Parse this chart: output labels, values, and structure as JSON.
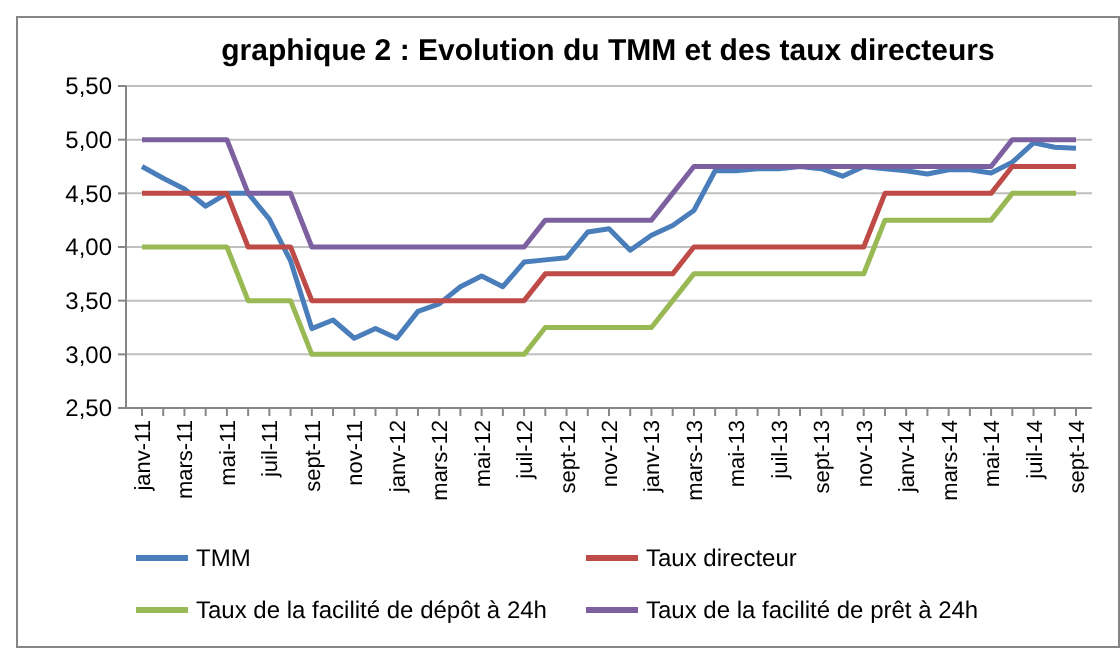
{
  "chart_data": {
    "type": "line",
    "title": "graphique 2 : Evolution du TMM et des taux directeurs",
    "categories": [
      "janv-11",
      null,
      "mars-11",
      null,
      "mai-11",
      null,
      "juil-11",
      null,
      "sept-11",
      null,
      "nov-11",
      null,
      "janv-12",
      null,
      "mars-12",
      null,
      "mai-12",
      null,
      "juil-12",
      null,
      "sept-12",
      null,
      "nov-12",
      null,
      "janv-13",
      null,
      "mars-13",
      null,
      "mai-13",
      null,
      "juil-13",
      null,
      "sept-13",
      null,
      "nov-13",
      null,
      "janv-14",
      null,
      "mars-14",
      null,
      "mai-14",
      null,
      "juil-14",
      null,
      "sept-14"
    ],
    "series": [
      {
        "name": "TMM",
        "color": "#4a7ebb",
        "values": [
          4.75,
          4.64,
          4.54,
          4.38,
          4.5,
          4.5,
          4.26,
          3.87,
          3.24,
          3.32,
          3.15,
          3.24,
          3.15,
          3.4,
          3.47,
          3.63,
          3.73,
          3.63,
          3.86,
          3.88,
          3.9,
          4.14,
          4.17,
          3.97,
          4.11,
          4.2,
          4.34,
          4.71,
          4.71,
          4.73,
          4.73,
          4.75,
          4.73,
          4.66,
          4.75,
          4.73,
          4.71,
          4.68,
          4.72,
          4.72,
          4.69,
          4.79,
          4.97,
          4.93,
          4.92
        ]
      },
      {
        "name": "Taux directeur",
        "color": "#be4b48",
        "values": [
          4.5,
          4.5,
          4.5,
          4.5,
          4.5,
          4,
          4,
          4,
          3.5,
          3.5,
          3.5,
          3.5,
          3.5,
          3.5,
          3.5,
          3.5,
          3.5,
          3.5,
          3.5,
          3.75,
          3.75,
          3.75,
          3.75,
          3.75,
          3.75,
          3.75,
          4,
          4,
          4,
          4,
          4,
          4,
          4,
          4,
          4,
          4.5,
          4.5,
          4.5,
          4.5,
          4.5,
          4.5,
          4.75,
          4.75,
          4.75,
          4.75
        ]
      },
      {
        "name": "Taux de la facilité de dépôt à 24h",
        "color": "#98b954",
        "values": [
          4,
          4,
          4,
          4,
          4,
          3.5,
          3.5,
          3.5,
          3,
          3,
          3,
          3,
          3,
          3,
          3,
          3,
          3,
          3,
          3,
          3.25,
          3.25,
          3.25,
          3.25,
          3.25,
          3.25,
          3.5,
          3.75,
          3.75,
          3.75,
          3.75,
          3.75,
          3.75,
          3.75,
          3.75,
          3.75,
          4.25,
          4.25,
          4.25,
          4.25,
          4.25,
          4.25,
          4.5,
          4.5,
          4.5,
          4.5
        ]
      },
      {
        "name": "Taux de la facilité  de prêt à 24h",
        "color": "#7d60a0",
        "values": [
          5,
          5,
          5,
          5,
          5,
          4.5,
          4.5,
          4.5,
          4,
          4,
          4,
          4,
          4,
          4,
          4,
          4,
          4,
          4,
          4,
          4.25,
          4.25,
          4.25,
          4.25,
          4.25,
          4.25,
          4.5,
          4.75,
          4.75,
          4.75,
          4.75,
          4.75,
          4.75,
          4.75,
          4.75,
          4.75,
          4.75,
          4.75,
          4.75,
          4.75,
          4.75,
          4.75,
          5,
          5,
          5,
          5
        ]
      }
    ],
    "ylim": [
      2.5,
      5.5
    ],
    "yticks": [
      {
        "value": 2.5,
        "label": "2,50"
      },
      {
        "value": 3,
        "label": "3,00"
      },
      {
        "value": 3.5,
        "label": "3,50"
      },
      {
        "value": 4,
        "label": "4,00"
      },
      {
        "value": 4.5,
        "label": "4,50"
      },
      {
        "value": 5,
        "label": "5,00"
      },
      {
        "value": 5.5,
        "label": "5,50"
      }
    ],
    "grid": "y",
    "legend": "bottom",
    "marker": "none",
    "line_style": "solid"
  }
}
